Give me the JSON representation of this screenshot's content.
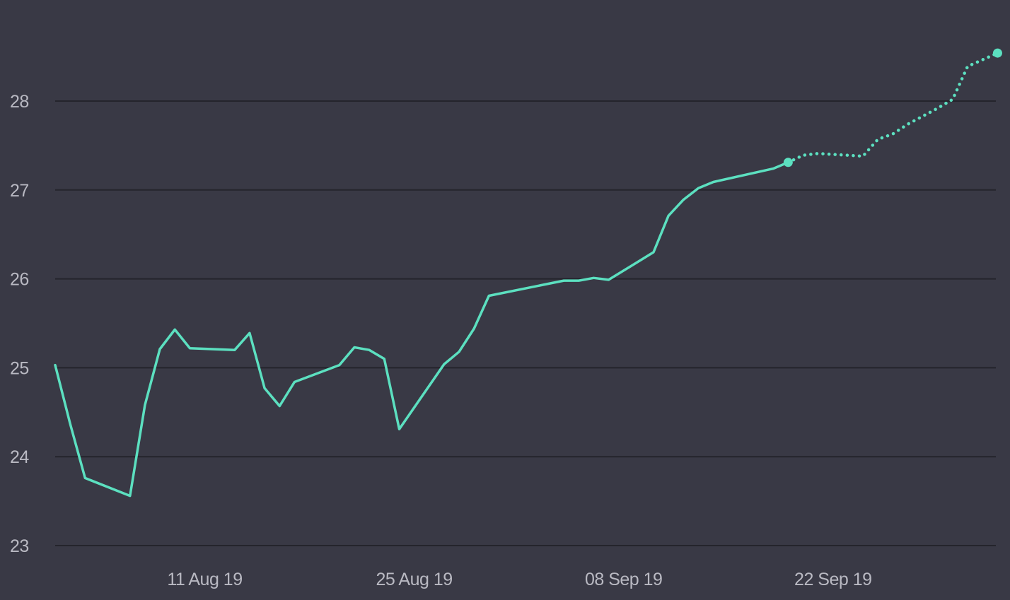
{
  "chart_data": {
    "type": "line",
    "title": "",
    "xlabel": "",
    "ylabel": "",
    "ylim": [
      23,
      28.6
    ],
    "xlim": [
      "2019-08-01",
      "2019-09-30"
    ],
    "grid": true,
    "y_ticks": [
      "23",
      "24",
      "25",
      "26",
      "27",
      "28"
    ],
    "x_ticks": [
      {
        "date": "2019-08-11",
        "label": "11 Aug 19"
      },
      {
        "date": "2019-08-25",
        "label": "25 Aug 19"
      },
      {
        "date": "2019-09-08",
        "label": "08 Sep 19"
      },
      {
        "date": "2019-09-22",
        "label": "22 Sep 19"
      }
    ],
    "colors": {
      "background": "#393945",
      "grid": "#24242c",
      "line": "#5ce0c0",
      "tick_text": "#b9b9c2"
    },
    "series": [
      {
        "style": "solid",
        "points": [
          [
            "2019-08-01",
            25.03
          ],
          [
            "2019-08-02",
            24.37
          ],
          [
            "2019-08-03",
            23.76
          ],
          [
            "2019-08-06",
            23.56
          ],
          [
            "2019-08-07",
            24.58
          ],
          [
            "2019-08-08",
            25.21
          ],
          [
            "2019-08-09",
            25.43
          ],
          [
            "2019-08-10",
            25.22
          ],
          [
            "2019-08-13",
            25.2
          ],
          [
            "2019-08-14",
            25.39
          ],
          [
            "2019-08-15",
            24.77
          ],
          [
            "2019-08-16",
            24.57
          ],
          [
            "2019-08-17",
            24.84
          ],
          [
            "2019-08-20",
            25.03
          ],
          [
            "2019-08-21",
            25.23
          ],
          [
            "2019-08-22",
            25.2
          ],
          [
            "2019-08-23",
            25.1
          ],
          [
            "2019-08-24",
            24.31
          ],
          [
            "2019-08-27",
            25.04
          ],
          [
            "2019-08-28",
            25.18
          ],
          [
            "2019-08-29",
            25.44
          ],
          [
            "2019-08-30",
            25.81
          ],
          [
            "2019-09-04",
            25.98
          ],
          [
            "2019-09-05",
            25.98
          ],
          [
            "2019-09-06",
            26.01
          ],
          [
            "2019-09-07",
            25.99
          ],
          [
            "2019-09-10",
            26.3
          ],
          [
            "2019-09-11",
            26.71
          ],
          [
            "2019-09-12",
            26.89
          ],
          [
            "2019-09-13",
            27.02
          ],
          [
            "2019-09-14",
            27.09
          ],
          [
            "2019-09-18",
            27.24
          ],
          [
            "2019-09-19",
            27.31
          ]
        ]
      },
      {
        "style": "dotted",
        "points": [
          [
            "2019-09-19",
            27.31
          ],
          [
            "2019-09-20",
            27.39
          ],
          [
            "2019-09-21",
            27.41
          ],
          [
            "2019-09-24",
            27.38
          ],
          [
            "2019-09-25",
            27.57
          ],
          [
            "2019-09-26",
            27.63
          ],
          [
            "2019-09-27",
            27.74
          ],
          [
            "2019-09-29",
            27.92
          ],
          [
            "2019-09-30",
            28.02
          ],
          [
            "2019-10-01",
            28.39
          ],
          [
            "2019-10-03",
            28.54
          ]
        ]
      }
    ],
    "end_markers": [
      [
        "2019-09-19",
        27.31
      ],
      [
        "2019-10-03",
        28.54
      ]
    ]
  }
}
